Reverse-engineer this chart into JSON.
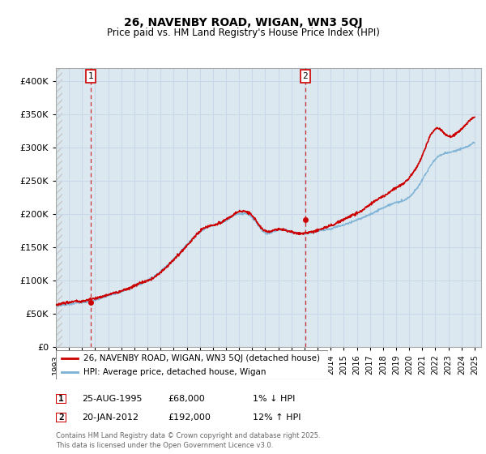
{
  "title": "26, NAVENBY ROAD, WIGAN, WN3 5QJ",
  "subtitle": "Price paid vs. HM Land Registry's House Price Index (HPI)",
  "legend_line1": "26, NAVENBY ROAD, WIGAN, WN3 5QJ (detached house)",
  "legend_line2": "HPI: Average price, detached house, Wigan",
  "annotation1_date": "25-AUG-1995",
  "annotation1_price": "£68,000",
  "annotation1_hpi": "1% ↓ HPI",
  "annotation2_date": "20-JAN-2012",
  "annotation2_price": "£192,000",
  "annotation2_hpi": "12% ↑ HPI",
  "footer": "Contains HM Land Registry data © Crown copyright and database right 2025.\nThis data is licensed under the Open Government Licence v3.0.",
  "price_color": "#cc0000",
  "hpi_color": "#7ab0d4",
  "hatch_color": "#c8c8c8",
  "grid_color": "#c8d8e8",
  "bg_color": "#dce8f0",
  "ylim": [
    0,
    420000
  ],
  "yticks": [
    0,
    50000,
    100000,
    150000,
    200000,
    250000,
    300000,
    350000,
    400000
  ],
  "sale1_year": 1995.65,
  "sale1_value": 68000,
  "sale2_year": 2012.05,
  "sale2_value": 192000,
  "xmin": 1993,
  "xmax": 2025.5
}
